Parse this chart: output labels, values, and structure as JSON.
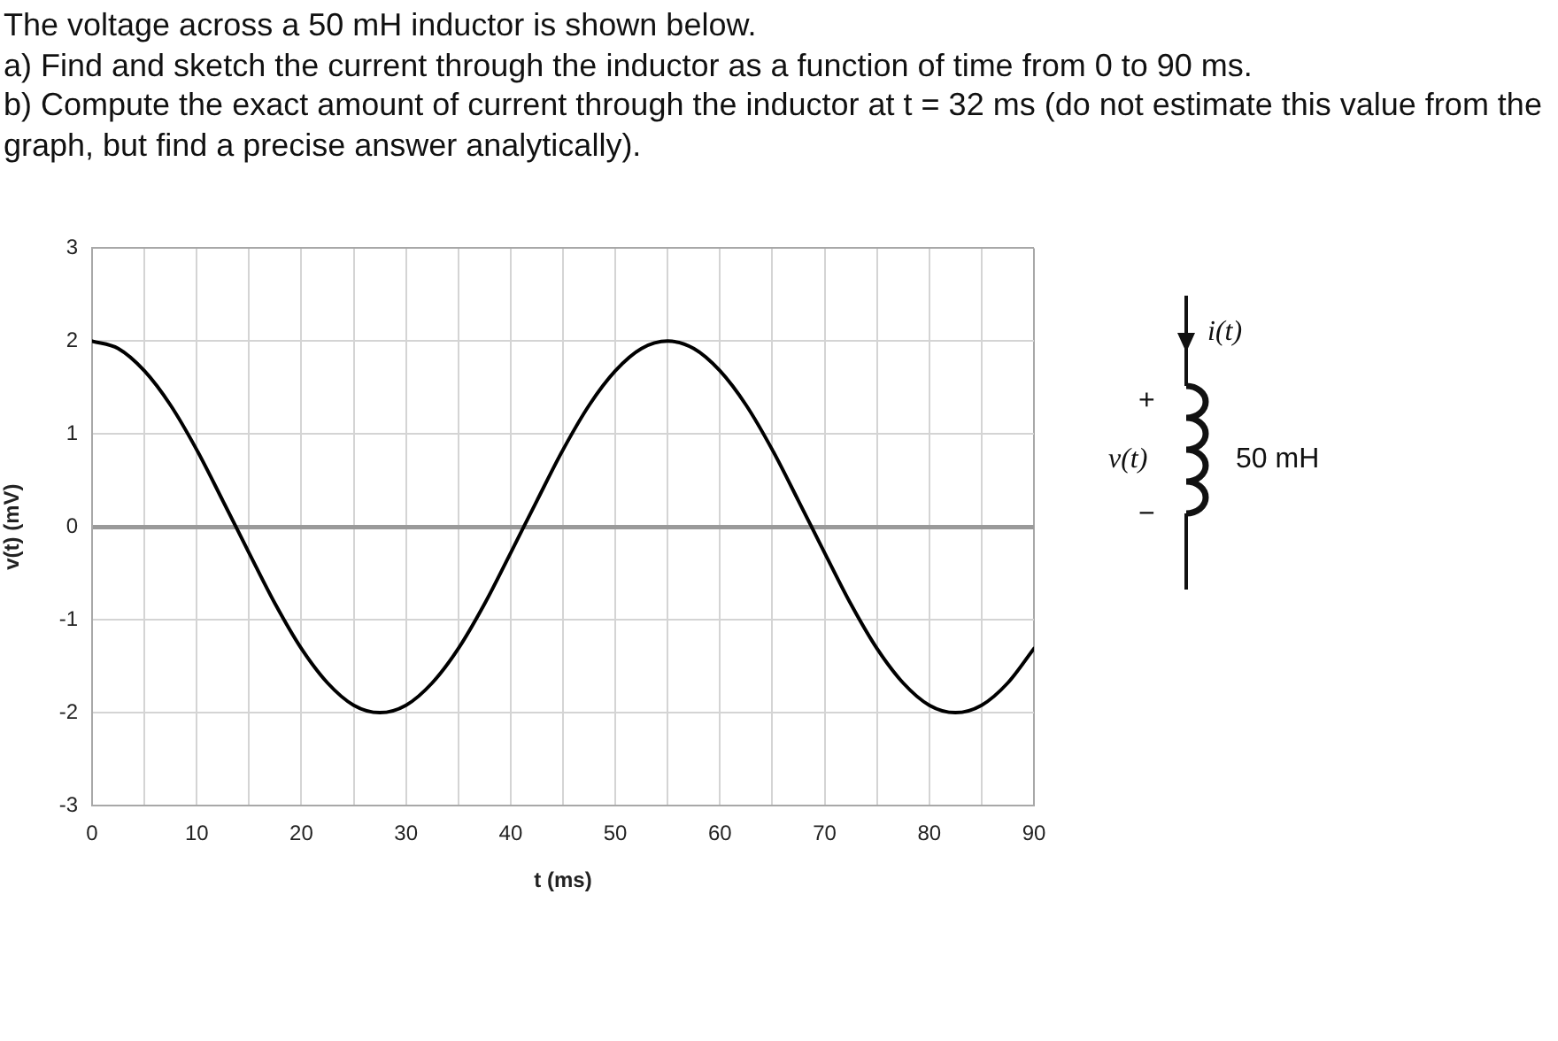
{
  "chart_data": {
    "type": "line",
    "title": "The voltage across a 50 mH inductor is shown below.",
    "annotations": [
      "a) Find and sketch the current through the inductor as a function of time from 0 to 90 ms.",
      "b) Compute the exact amount of current through the inductor at t = 32 ms (do not estimate this value from the graph, but find a precise answer analytically).",
      "i(t)",
      "+",
      "v(t)",
      "−",
      "50 mH"
    ],
    "xlabel": "t (ms)",
    "ylabel": "v(t) (mV)",
    "x": [
      0,
      2.5,
      5,
      7.5,
      10,
      12.5,
      15,
      17.5,
      20,
      22.5,
      25,
      27.5,
      30,
      32.5,
      35,
      37.5,
      40,
      42.5,
      45,
      47.5,
      50,
      52.5,
      55,
      57.5,
      60,
      62.5,
      65,
      67.5,
      70,
      72.5,
      75,
      77.5,
      80,
      82.5,
      85,
      87.5,
      90
    ],
    "series": [
      {
        "color": "#000000",
        "values": [
          2,
          1.92,
          1.68,
          1.31,
          0.83,
          0.28,
          -0.28,
          -0.83,
          -1.31,
          -1.68,
          -1.92,
          -2,
          -1.92,
          -1.68,
          -1.31,
          -0.83,
          -0.28,
          0.28,
          0.83,
          1.31,
          1.68,
          1.92,
          2,
          1.92,
          1.68,
          1.31,
          0.83,
          0.28,
          -0.28,
          -0.83,
          -1.31,
          -1.68,
          -1.92,
          -2,
          -1.92,
          -1.68,
          -1.31
        ]
      }
    ],
    "xlim": [
      0,
      90
    ],
    "xticks": [
      0,
      {
        "value": 5,
        "label": null
      },
      10,
      {
        "value": 15,
        "label": null
      },
      20,
      {
        "value": 25,
        "label": null
      },
      30,
      {
        "value": 35,
        "label": null
      },
      40,
      {
        "value": 45,
        "label": null
      },
      50,
      {
        "value": 55,
        "label": null
      },
      60,
      {
        "value": 65,
        "label": null
      },
      70,
      {
        "value": 75,
        "label": null
      },
      80,
      {
        "value": 85,
        "label": null
      },
      90
    ],
    "ylim": [
      -3,
      3
    ],
    "yticks": [
      -3,
      -2,
      -1,
      0,
      1,
      2,
      3
    ],
    "grid": true,
    "marker": "none",
    "line_style": "solid"
  }
}
